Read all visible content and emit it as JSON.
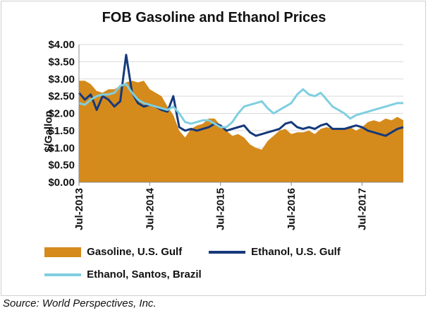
{
  "chart_data": {
    "type": "area",
    "title": "FOB Gasoline and Ethanol Prices",
    "ylabel": "$/Gallon",
    "xlabel": "",
    "ylim": [
      0,
      4
    ],
    "yticks": [
      "$0.00",
      "$0.50",
      "$1.00",
      "$1.50",
      "$2.00",
      "$2.50",
      "$3.00",
      "$3.50",
      "$4.00"
    ],
    "ytick_values": [
      0,
      0.5,
      1,
      1.5,
      2,
      2.5,
      3,
      3.5,
      4
    ],
    "xticks": [
      "Jul-2013",
      "Jul-2014",
      "Jul-2015",
      "Jul-2016",
      "Jul-2017"
    ],
    "xtick_values": [
      "2013-07",
      "2014-07",
      "2015-07",
      "2016-07",
      "2017-07"
    ],
    "xlim": [
      "2013-07",
      "2018-02"
    ],
    "grid": "horizontal",
    "legend_position": "bottom",
    "x": [
      "2013-07",
      "2013-08",
      "2013-09",
      "2013-10",
      "2013-11",
      "2013-12",
      "2014-01",
      "2014-02",
      "2014-03",
      "2014-04",
      "2014-05",
      "2014-06",
      "2014-07",
      "2014-08",
      "2014-09",
      "2014-10",
      "2014-11",
      "2014-12",
      "2015-01",
      "2015-02",
      "2015-03",
      "2015-04",
      "2015-05",
      "2015-06",
      "2015-07",
      "2015-08",
      "2015-09",
      "2015-10",
      "2015-11",
      "2015-12",
      "2016-01",
      "2016-02",
      "2016-03",
      "2016-04",
      "2016-05",
      "2016-06",
      "2016-07",
      "2016-08",
      "2016-09",
      "2016-10",
      "2016-11",
      "2016-12",
      "2017-01",
      "2017-02",
      "2017-03",
      "2017-04",
      "2017-05",
      "2017-06",
      "2017-07",
      "2017-08",
      "2017-09",
      "2017-10",
      "2017-11",
      "2017-12",
      "2018-01",
      "2018-02"
    ],
    "series": [
      {
        "name": "Gasoline, U.S. Gulf",
        "style": "area",
        "color": "#D58A1C",
        "values": [
          2.95,
          2.95,
          2.85,
          2.65,
          2.6,
          2.7,
          2.7,
          2.8,
          2.9,
          2.95,
          2.9,
          2.95,
          2.7,
          2.6,
          2.5,
          2.2,
          1.95,
          1.5,
          1.3,
          1.55,
          1.65,
          1.7,
          1.85,
          1.85,
          1.65,
          1.5,
          1.35,
          1.4,
          1.3,
          1.1,
          1.0,
          0.95,
          1.2,
          1.35,
          1.5,
          1.55,
          1.4,
          1.45,
          1.45,
          1.5,
          1.4,
          1.55,
          1.6,
          1.55,
          1.55,
          1.55,
          1.6,
          1.5,
          1.6,
          1.75,
          1.8,
          1.75,
          1.85,
          1.8,
          1.9,
          1.8
        ]
      },
      {
        "name": "Ethanol, U.S. Gulf",
        "style": "line",
        "color": "#15397A",
        "values": [
          2.6,
          2.4,
          2.55,
          2.1,
          2.5,
          2.4,
          2.2,
          2.35,
          3.7,
          2.6,
          2.3,
          2.2,
          2.25,
          2.2,
          2.1,
          2.05,
          2.5,
          1.6,
          1.5,
          1.55,
          1.5,
          1.55,
          1.6,
          1.7,
          1.65,
          1.5,
          1.55,
          1.6,
          1.65,
          1.45,
          1.35,
          1.4,
          1.45,
          1.5,
          1.55,
          1.7,
          1.75,
          1.6,
          1.55,
          1.6,
          1.55,
          1.65,
          1.7,
          1.55,
          1.55,
          1.55,
          1.6,
          1.65,
          1.6,
          1.5,
          1.45,
          1.4,
          1.35,
          1.45,
          1.55,
          1.6
        ]
      },
      {
        "name": "Ethanol, Santos, Brazil",
        "style": "line",
        "color": "#7FCFE0",
        "values": [
          2.3,
          2.25,
          2.4,
          2.5,
          2.55,
          2.55,
          2.6,
          2.8,
          2.85,
          2.6,
          2.4,
          2.3,
          2.25,
          2.2,
          2.15,
          2.1,
          2.2,
          2.0,
          1.75,
          1.7,
          1.75,
          1.8,
          1.8,
          1.7,
          1.6,
          1.6,
          1.75,
          2.0,
          2.2,
          2.25,
          2.3,
          2.35,
          2.15,
          2.0,
          2.1,
          2.2,
          2.3,
          2.55,
          2.7,
          2.55,
          2.5,
          2.6,
          2.4,
          2.2,
          2.1,
          2.0,
          1.85,
          1.95,
          2.0,
          2.05,
          2.1,
          2.15,
          2.2,
          2.25,
          2.3,
          2.3
        ]
      }
    ]
  },
  "source_note": "Source: World Perspectives, Inc."
}
